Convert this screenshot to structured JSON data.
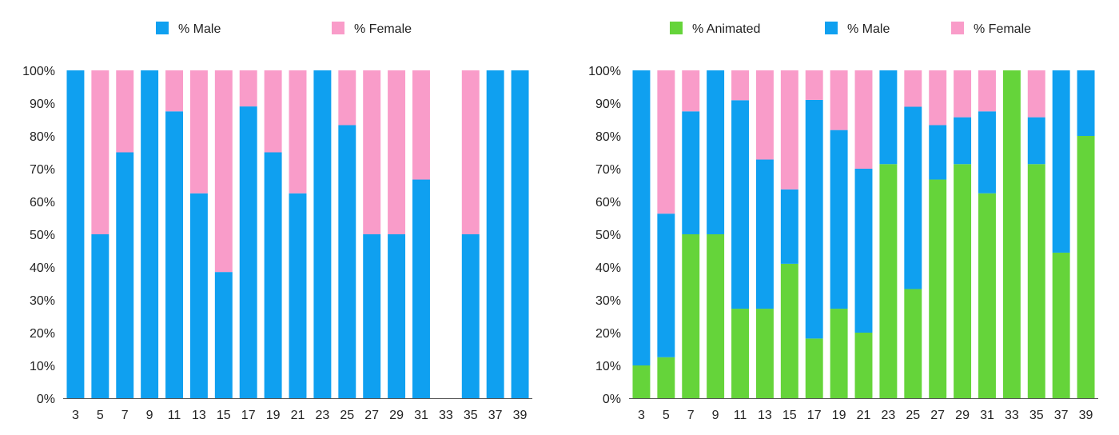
{
  "chart_data": [
    {
      "type": "bar",
      "stacked": true,
      "title": "",
      "xlabel": "",
      "ylabel": "",
      "ylim": [
        0,
        100
      ],
      "y_ticks": [
        "0%",
        "10%",
        "20%",
        "30%",
        "40%",
        "50%",
        "60%",
        "70%",
        "80%",
        "90%",
        "100%"
      ],
      "grid": false,
      "legend_position": "top",
      "categories": [
        "3",
        "5",
        "7",
        "9",
        "11",
        "13",
        "15",
        "17",
        "19",
        "21",
        "23",
        "25",
        "27",
        "29",
        "31",
        "33",
        "35",
        "37",
        "39"
      ],
      "series": [
        {
          "name": "% Male",
          "color": "#0fa0f0",
          "values": [
            100,
            50,
            75,
            100,
            87.5,
            62.5,
            38.5,
            89,
            75,
            62.5,
            100,
            83.3,
            50,
            50,
            66.7,
            0,
            50,
            100,
            100
          ]
        },
        {
          "name": "% Female",
          "color": "#f99cc9",
          "values": [
            0,
            50,
            25,
            0,
            12.5,
            37.5,
            61.5,
            11,
            25,
            37.5,
            0,
            16.7,
            50,
            50,
            33.3,
            0,
            50,
            0,
            0
          ]
        }
      ]
    },
    {
      "type": "bar",
      "stacked": true,
      "title": "",
      "xlabel": "",
      "ylabel": "",
      "ylim": [
        0,
        100
      ],
      "y_ticks": [
        "0%",
        "10%",
        "20%",
        "30%",
        "40%",
        "50%",
        "60%",
        "70%",
        "80%",
        "90%",
        "100%"
      ],
      "grid": false,
      "legend_position": "top",
      "categories": [
        "3",
        "5",
        "7",
        "9",
        "11",
        "13",
        "15",
        "17",
        "19",
        "21",
        "23",
        "25",
        "27",
        "29",
        "31",
        "33",
        "35",
        "37",
        "39"
      ],
      "series": [
        {
          "name": "% Animated",
          "color": "#65d43a",
          "values": [
            10,
            12.5,
            50,
            50,
            27.3,
            27.3,
            41,
            18.2,
            27.3,
            20,
            71.4,
            33.3,
            66.7,
            71.4,
            62.5,
            100,
            71.4,
            44.4,
            80
          ]
        },
        {
          "name": "% Male",
          "color": "#0fa0f0",
          "values": [
            90,
            43.8,
            37.5,
            50,
            63.6,
            45.5,
            22.7,
            72.8,
            54.5,
            50,
            28.6,
            55.6,
            16.6,
            14.3,
            25,
            0,
            14.3,
            55.6,
            20
          ]
        },
        {
          "name": "% Female",
          "color": "#f99cc9",
          "values": [
            0,
            43.7,
            12.5,
            0,
            9.1,
            27.2,
            36.3,
            9,
            18.2,
            30,
            0,
            11.1,
            16.7,
            14.3,
            12.5,
            0,
            14.3,
            0,
            0
          ]
        }
      ]
    }
  ]
}
